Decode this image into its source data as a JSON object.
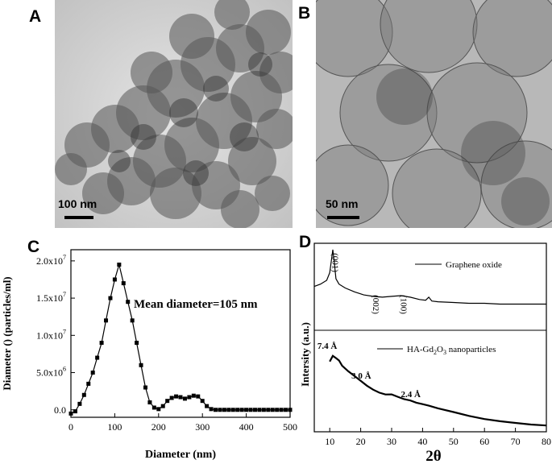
{
  "panels": {
    "a": {
      "letter": "A",
      "scale_label": "100 nm"
    },
    "b": {
      "letter": "B",
      "scale_label": "50 nm"
    },
    "c": {
      "letter": "C"
    },
    "d": {
      "letter": "D"
    }
  },
  "colors": {
    "tem_light": "#cfcfcf",
    "tem_dark": "#3c3c3c",
    "line": "#000000"
  },
  "chart_data": [
    {
      "type": "line",
      "panel": "C",
      "xlabel": "Diameter (nm)",
      "ylabel": "Diameter () (particles/ml)",
      "annotation": "Mean diameter=105 nm",
      "xlim": [
        0,
        500
      ],
      "ylim": [
        -1000000.0,
        21500000.0
      ],
      "x_ticks": [
        0,
        100,
        200,
        300,
        400,
        500
      ],
      "x_tick_labels": [
        "0",
        "100",
        "200",
        "300",
        "400",
        "500"
      ],
      "y_ticks": [
        0,
        5000000.0,
        10000000.0,
        15000000.0,
        20000000.0
      ],
      "y_tick_labels": [
        {
          "base": "0.0",
          "exp": ""
        },
        {
          "base": "5.0x10",
          "exp": "6"
        },
        {
          "base": "1.0x10",
          "exp": "7"
        },
        {
          "base": "1.5x10",
          "exp": "7"
        },
        {
          "base": "2.0x10",
          "exp": "7"
        }
      ],
      "x": [
        0,
        10,
        20,
        30,
        40,
        50,
        60,
        70,
        80,
        90,
        100,
        110,
        120,
        130,
        140,
        150,
        160,
        170,
        180,
        190,
        200,
        210,
        220,
        230,
        240,
        250,
        260,
        270,
        280,
        290,
        300,
        310,
        320,
        330,
        340,
        350,
        360,
        370,
        380,
        390,
        400,
        410,
        420,
        430,
        440,
        450,
        460,
        470,
        480,
        490,
        500
      ],
      "values": [
        -500000.0,
        -200000.0,
        800000.0,
        2000000.0,
        3500000.0,
        5000000.0,
        7000000.0,
        9000000.0,
        12000000.0,
        15000000.0,
        17500000.0,
        19500000.0,
        17000000.0,
        14500000.0,
        12000000.0,
        9000000.0,
        6000000.0,
        3000000.0,
        1000000.0,
        300000.0,
        100000.0,
        500000.0,
        1200000.0,
        1600000.0,
        1800000.0,
        1700000.0,
        1500000.0,
        1700000.0,
        1900000.0,
        1800000.0,
        1200000.0,
        500000.0,
        100000.0,
        0,
        0,
        0,
        0,
        0,
        0,
        0,
        0,
        0,
        0,
        0,
        0,
        0,
        0,
        0,
        0,
        0,
        0
      ]
    },
    {
      "type": "line",
      "panel": "D",
      "xlabel": "2θ",
      "ylabel": "Intersity (a.u.)",
      "xlim": [
        5,
        80
      ],
      "x_ticks": [
        10,
        20,
        30,
        40,
        50,
        60,
        70,
        80
      ],
      "x_tick_labels": [
        "10",
        "20",
        "30",
        "40",
        "50",
        "60",
        "70",
        "80"
      ],
      "series": [
        {
          "name": "Graphene oxide",
          "peak_labels": [
            "(001)",
            "(002)",
            "(100)"
          ],
          "x": [
            5,
            7,
            9,
            10,
            10.5,
            11,
            11.5,
            12,
            13,
            15,
            18,
            21,
            24,
            27,
            30,
            33,
            36,
            39,
            41,
            42,
            43,
            45,
            50,
            55,
            60,
            65,
            70,
            75,
            80
          ],
          "values": [
            0.52,
            0.55,
            0.6,
            0.7,
            0.85,
            1.0,
            0.82,
            0.62,
            0.55,
            0.5,
            0.45,
            0.41,
            0.39,
            0.38,
            0.39,
            0.4,
            0.38,
            0.35,
            0.34,
            0.38,
            0.33,
            0.32,
            0.31,
            0.3,
            0.3,
            0.29,
            0.29,
            0.29,
            0.29
          ]
        },
        {
          "name": "HA-Gd2O3 nanoparticles",
          "name_main": "HA-Gd",
          "name_sub1": "2",
          "name_mid": "O",
          "name_sub2": "3",
          "name_tail": " nanoparticles",
          "peak_labels": [
            "7.4 Å",
            "3.0 Å",
            "2.4 Å"
          ],
          "x": [
            10,
            11,
            12,
            13,
            14,
            16,
            18,
            20,
            22,
            24,
            26,
            28,
            30,
            32,
            34,
            36,
            38,
            40,
            42,
            45,
            50,
            55,
            60,
            65,
            70,
            75,
            80
          ],
          "values": [
            0.72,
            0.78,
            0.75,
            0.72,
            0.66,
            0.6,
            0.55,
            0.5,
            0.45,
            0.41,
            0.38,
            0.36,
            0.36,
            0.33,
            0.3,
            0.28,
            0.25,
            0.23,
            0.21,
            0.18,
            0.14,
            0.1,
            0.07,
            0.05,
            0.035,
            0.02,
            0.01
          ]
        }
      ]
    }
  ]
}
